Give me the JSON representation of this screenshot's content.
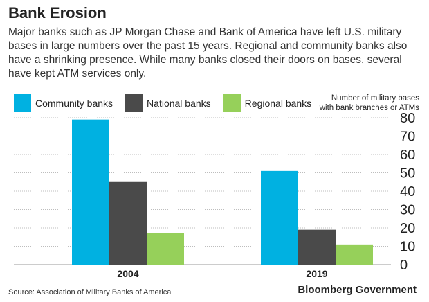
{
  "header": {
    "title": "Bank Erosion",
    "subtitle": "Major banks such as JP Morgan Chase and Bank of America have left U.S. military bases in large numbers over the past 15 years. Regional and community banks also have a shrinking presence. While many banks closed their doors on bases, several have kept ATM services only."
  },
  "axis_note": {
    "line1": "Number of military bases",
    "line2": "with bank branches or ATMs"
  },
  "footer": {
    "source": "Source: Association of Military Banks of America",
    "brand": "Bloomberg Government"
  },
  "colors": {
    "community": "#00b1e1",
    "national": "#4a4a4a",
    "regional": "#96d05a"
  },
  "chart_data": {
    "type": "bar",
    "title": "Bank Erosion",
    "categories": [
      "2004",
      "2019"
    ],
    "series": [
      {
        "name": "Community banks",
        "values": [
          79,
          51
        ]
      },
      {
        "name": "National banks",
        "values": [
          45,
          19
        ]
      },
      {
        "name": "Regional banks",
        "values": [
          17,
          11
        ]
      }
    ],
    "ylim": [
      0,
      80
    ],
    "yticks": [
      0,
      10,
      20,
      30,
      40,
      50,
      60,
      70,
      80
    ],
    "ylabel": "Number of military bases with bank branches or ATMs",
    "grid": "dotted horizontal",
    "legend_position": "top-left"
  }
}
